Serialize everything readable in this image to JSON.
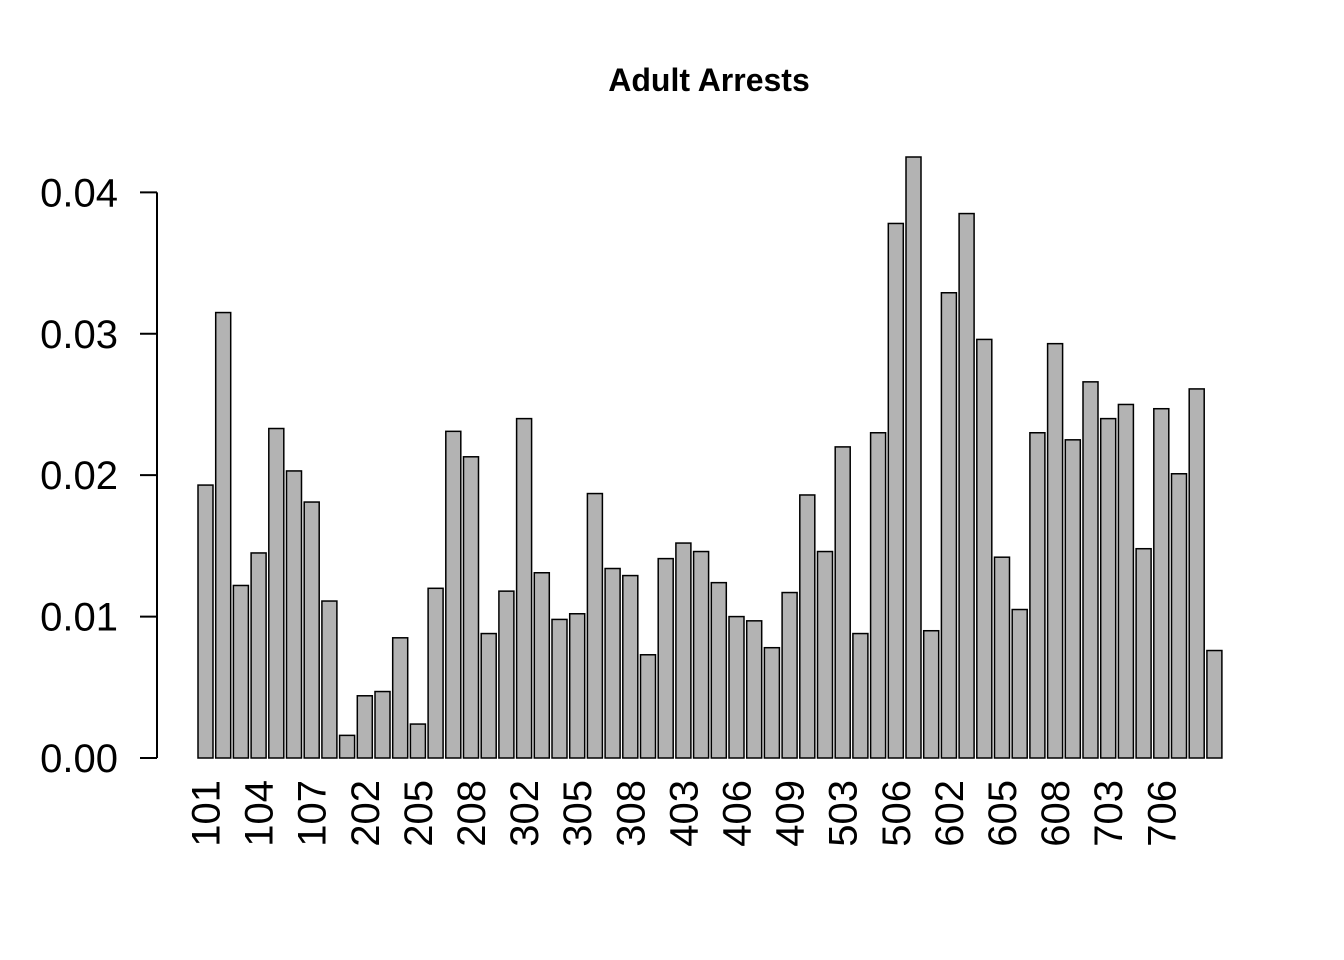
{
  "chart_data": {
    "type": "bar",
    "title": "Adult Arrests",
    "categories": [
      "101",
      null,
      null,
      "104",
      null,
      null,
      "107",
      null,
      null,
      "202",
      null,
      null,
      "205",
      null,
      null,
      "208",
      null,
      null,
      "302",
      null,
      null,
      "305",
      null,
      null,
      "308",
      null,
      null,
      "403",
      null,
      null,
      "406",
      null,
      null,
      "409",
      null,
      null,
      "503",
      null,
      null,
      "506",
      null,
      null,
      "602",
      null,
      null,
      "605",
      null,
      null,
      "608",
      null,
      null,
      "703",
      null,
      null,
      "706",
      null,
      null,
      null
    ],
    "values": [
      0.0193,
      0.0315,
      0.0122,
      0.0145,
      0.0233,
      0.0203,
      0.0181,
      0.0111,
      0.0016,
      0.0044,
      0.0047,
      0.0085,
      0.0024,
      0.012,
      0.0231,
      0.0213,
      0.0088,
      0.0118,
      0.024,
      0.0131,
      0.0098,
      0.0102,
      0.0187,
      0.0134,
      0.0129,
      0.0073,
      0.0141,
      0.0152,
      0.0146,
      0.0124,
      0.01,
      0.0097,
      0.0078,
      0.0117,
      0.0186,
      0.0146,
      0.022,
      0.0088,
      0.023,
      0.0378,
      0.0425,
      0.009,
      0.0329,
      0.0385,
      0.0296,
      0.0142,
      0.0105,
      0.023,
      0.0293,
      0.0225,
      0.0266,
      0.024,
      0.025,
      0.0148,
      0.0247,
      0.0201,
      0.0261,
      0.0076
    ],
    "color": "#b3b3b3",
    "ylim": [
      0,
      0.0425
    ],
    "yticks": [
      {
        "value": 0,
        "label": "0.00"
      },
      0.01,
      0.02,
      0.03,
      0.04
    ]
  }
}
